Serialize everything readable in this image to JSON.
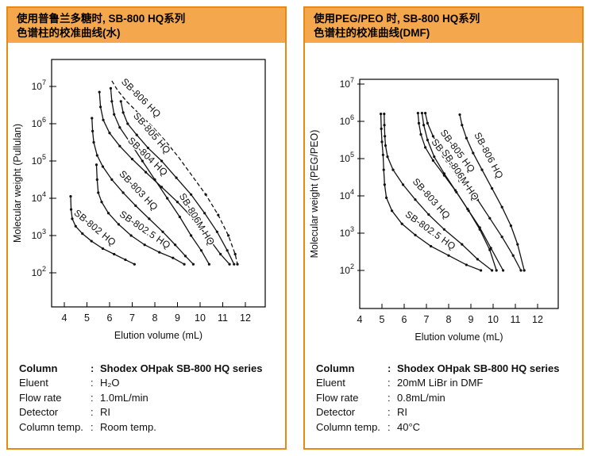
{
  "colors": {
    "panel_border": "#e88a10",
    "header_bg": "#f4a74d",
    "ink": "#111111"
  },
  "panels": [
    {
      "header": {
        "line1": "使用普鲁兰多糖时, SB-800 HQ系列",
        "line2": "色谱柱的校准曲线(水)"
      },
      "info": {
        "colon": ":",
        "rows": [
          {
            "label": "Column",
            "value": "Shodex OHpak SB-800 HQ series"
          },
          {
            "label": "Eluent",
            "value": "H₂O"
          },
          {
            "label": "Flow rate",
            "value": "1.0mL/min"
          },
          {
            "label": "Detector",
            "value": "RI"
          },
          {
            "label": "Column temp.",
            "value": "Room temp."
          }
        ]
      }
    },
    {
      "header": {
        "line1": "使用PEG/PEO 时, SB-800 HQ系列",
        "line2": "色谱柱的校准曲线(DMF)"
      },
      "info": {
        "colon": ":",
        "rows": [
          {
            "label": "Column",
            "value": "Shodex OHpak SB-800 HQ series"
          },
          {
            "label": "Eluent",
            "value": "20mM LiBr in DMF"
          },
          {
            "label": "Flow rate",
            "value": "0.8mL/min"
          },
          {
            "label": "Detector",
            "value": "RI"
          },
          {
            "label": "Column temp.",
            "value": "40°C"
          }
        ]
      }
    }
  ],
  "chart_data": [
    {
      "type": "line",
      "title": "Calibration curves of SB-800 HQ series columns (Pullulan, water)",
      "xlabel": "Elution volume (mL)",
      "ylabel": "Molecular weight (Pullulan)",
      "x_ticks": [
        4,
        5,
        6,
        7,
        8,
        9,
        10,
        11,
        12
      ],
      "y_ticks_log10": [
        2,
        3,
        4,
        5,
        6,
        7
      ],
      "xlim": [
        3.45,
        12.9
      ],
      "ylim_log10": [
        1.1,
        7.7
      ],
      "y_scale": "log",
      "grid": false,
      "legend_position": "labels-on-curves",
      "point_format": "[elution_volume_mL, log10_molecular_weight]",
      "series": [
        {
          "name": "SB-802 HQ",
          "style": "solid",
          "points": [
            [
              4.28,
              4.05
            ],
            [
              4.3,
              3.7
            ],
            [
              4.35,
              3.45
            ],
            [
              4.5,
              3.25
            ],
            [
              4.8,
              3.05
            ],
            [
              5.2,
              2.85
            ],
            [
              5.7,
              2.65
            ],
            [
              6.2,
              2.5
            ],
            [
              6.7,
              2.35
            ],
            [
              7.1,
              2.23
            ]
          ]
        },
        {
          "name": "SB-802.5 HQ",
          "style": "solid",
          "points": [
            [
              5.42,
              4.9
            ],
            [
              5.45,
              4.5
            ],
            [
              5.5,
              4.15
            ],
            [
              5.65,
              3.9
            ],
            [
              5.95,
              3.6
            ],
            [
              6.4,
              3.3
            ],
            [
              6.95,
              3.0
            ],
            [
              7.55,
              2.75
            ],
            [
              8.2,
              2.55
            ],
            [
              8.8,
              2.4
            ],
            [
              9.3,
              2.23
            ]
          ]
        },
        {
          "name": "SB-803 HQ",
          "style": "solid",
          "points": [
            [
              5.22,
              6.15
            ],
            [
              5.25,
              5.8
            ],
            [
              5.3,
              5.5
            ],
            [
              5.45,
              5.15
            ],
            [
              5.7,
              4.85
            ],
            [
              6.1,
              4.5
            ],
            [
              6.6,
              4.15
            ],
            [
              7.15,
              3.8
            ],
            [
              7.75,
              3.45
            ],
            [
              8.35,
              3.1
            ],
            [
              8.9,
              2.75
            ],
            [
              9.35,
              2.45
            ],
            [
              9.7,
              2.23
            ]
          ]
        },
        {
          "name": "SB-804 HQ",
          "style": "solid",
          "points": [
            [
              5.55,
              6.85
            ],
            [
              5.6,
              6.45
            ],
            [
              5.72,
              6.1
            ],
            [
              6.0,
              5.75
            ],
            [
              6.45,
              5.4
            ],
            [
              7.0,
              5.05
            ],
            [
              7.6,
              4.7
            ],
            [
              8.3,
              4.3
            ],
            [
              9.0,
              3.9
            ],
            [
              9.7,
              3.45
            ],
            [
              10.35,
              2.95
            ],
            [
              10.9,
              2.5
            ],
            [
              11.3,
              2.23
            ]
          ]
        },
        {
          "name": "SB-806M HQ",
          "style": "solid",
          "points": [
            [
              6.05,
              6.95
            ],
            [
              6.1,
              6.6
            ],
            [
              6.2,
              6.25
            ],
            [
              6.45,
              5.9
            ],
            [
              6.9,
              5.5
            ],
            [
              7.45,
              5.0
            ],
            [
              8.0,
              4.5
            ],
            [
              8.55,
              4.0
            ],
            [
              9.1,
              3.5
            ],
            [
              9.6,
              3.0
            ],
            [
              10.05,
              2.6
            ],
            [
              10.4,
              2.23
            ]
          ]
        },
        {
          "name": "SB-805 HQ",
          "style": "solid",
          "points": [
            [
              6.5,
              6.6
            ],
            [
              6.6,
              6.3
            ],
            [
              6.8,
              6.0
            ],
            [
              7.2,
              5.7
            ],
            [
              7.7,
              5.35
            ],
            [
              8.3,
              5.0
            ],
            [
              8.95,
              4.55
            ],
            [
              9.6,
              4.1
            ],
            [
              10.2,
              3.6
            ],
            [
              10.75,
              3.1
            ],
            [
              11.2,
              2.6
            ],
            [
              11.5,
              2.23
            ]
          ]
        },
        {
          "name": "SB-806 HQ",
          "style": "dashed",
          "points": [
            [
              6.1,
              7.15
            ],
            [
              6.35,
              6.9
            ],
            [
              6.75,
              6.6
            ],
            [
              7.25,
              6.3
            ],
            [
              7.85,
              5.95
            ],
            [
              8.45,
              5.55
            ],
            [
              9.05,
              5.1
            ],
            [
              9.65,
              4.6
            ],
            [
              10.25,
              4.1
            ],
            [
              10.8,
              3.55
            ],
            [
              11.25,
              3.0
            ],
            [
              11.55,
              2.5
            ],
            [
              11.65,
              2.23
            ]
          ]
        }
      ]
    },
    {
      "type": "line",
      "title": "Calibration curves of SB-800 HQ series columns (PEG/PEO, DMF)",
      "xlabel": "Elution volume (mL)",
      "ylabel": "Molecular weight (PEG/PEO)",
      "x_ticks": [
        4,
        5,
        6,
        7,
        8,
        9,
        10,
        11,
        12
      ],
      "y_ticks_log10": [
        2,
        3,
        4,
        5,
        6,
        7
      ],
      "xlim": [
        4.0,
        12.9
      ],
      "ylim_log10": [
        1.0,
        7.3
      ],
      "y_scale": "log",
      "grid": false,
      "legend_position": "labels-on-curves",
      "point_format": "[elution_volume_mL, log10_molecular_weight]",
      "series": [
        {
          "name": "SB-802.5 HQ",
          "style": "solid",
          "points": [
            [
              4.95,
              6.2
            ],
            [
              4.97,
              5.8
            ],
            [
              5.0,
              5.45
            ],
            [
              5.05,
              5.1
            ],
            [
              5.08,
              4.7
            ],
            [
              5.12,
              4.3
            ],
            [
              5.2,
              3.95
            ],
            [
              5.45,
              3.6
            ],
            [
              5.9,
              3.25
            ],
            [
              6.5,
              2.95
            ],
            [
              7.2,
              2.65
            ],
            [
              8.0,
              2.4
            ],
            [
              8.8,
              2.15
            ],
            [
              9.45,
              2.0
            ]
          ]
        },
        {
          "name": "SB-803 HQ",
          "style": "solid",
          "points": [
            [
              5.1,
              6.2
            ],
            [
              5.11,
              5.9
            ],
            [
              5.13,
              5.6
            ],
            [
              5.16,
              5.35
            ],
            [
              5.25,
              5.05
            ],
            [
              5.5,
              4.7
            ],
            [
              5.95,
              4.3
            ],
            [
              6.5,
              3.9
            ],
            [
              7.1,
              3.5
            ],
            [
              7.8,
              3.1
            ],
            [
              8.6,
              2.7
            ],
            [
              9.3,
              2.3
            ],
            [
              9.95,
              2.0
            ]
          ]
        },
        {
          "name": "SB-804 HQ",
          "style": "solid",
          "points": [
            [
              6.62,
              6.22
            ],
            [
              6.66,
              5.95
            ],
            [
              6.75,
              5.65
            ],
            [
              6.95,
              5.3
            ],
            [
              7.3,
              4.95
            ],
            [
              7.8,
              4.55
            ],
            [
              8.35,
              4.1
            ],
            [
              8.9,
              3.6
            ],
            [
              9.4,
              3.1
            ],
            [
              9.85,
              2.55
            ],
            [
              10.15,
              2.0
            ]
          ]
        },
        {
          "name": "SB-806M HQ",
          "style": "solid",
          "points": [
            [
              6.8,
              6.22
            ],
            [
              6.88,
              5.9
            ],
            [
              7.05,
              5.5
            ],
            [
              7.35,
              5.05
            ],
            [
              7.8,
              4.6
            ],
            [
              8.3,
              4.15
            ],
            [
              8.85,
              3.65
            ],
            [
              9.4,
              3.15
            ],
            [
              9.9,
              2.6
            ],
            [
              10.45,
              2.0
            ]
          ]
        },
        {
          "name": "SB-805 HQ",
          "style": "solid",
          "points": [
            [
              6.95,
              6.22
            ],
            [
              7.05,
              5.95
            ],
            [
              7.3,
              5.6
            ],
            [
              7.7,
              5.2
            ],
            [
              8.2,
              4.8
            ],
            [
              8.75,
              4.35
            ],
            [
              9.3,
              3.9
            ],
            [
              9.85,
              3.4
            ],
            [
              10.4,
              2.9
            ],
            [
              10.9,
              2.4
            ],
            [
              11.25,
              2.0
            ]
          ]
        },
        {
          "name": "SB-806 HQ",
          "style": "solid",
          "points": [
            [
              8.5,
              6.18
            ],
            [
              8.6,
              5.9
            ],
            [
              8.8,
              5.55
            ],
            [
              9.1,
              5.15
            ],
            [
              9.5,
              4.7
            ],
            [
              9.95,
              4.2
            ],
            [
              10.4,
              3.7
            ],
            [
              10.8,
              3.2
            ],
            [
              11.1,
              2.7
            ],
            [
              11.4,
              2.0
            ]
          ]
        }
      ]
    }
  ]
}
